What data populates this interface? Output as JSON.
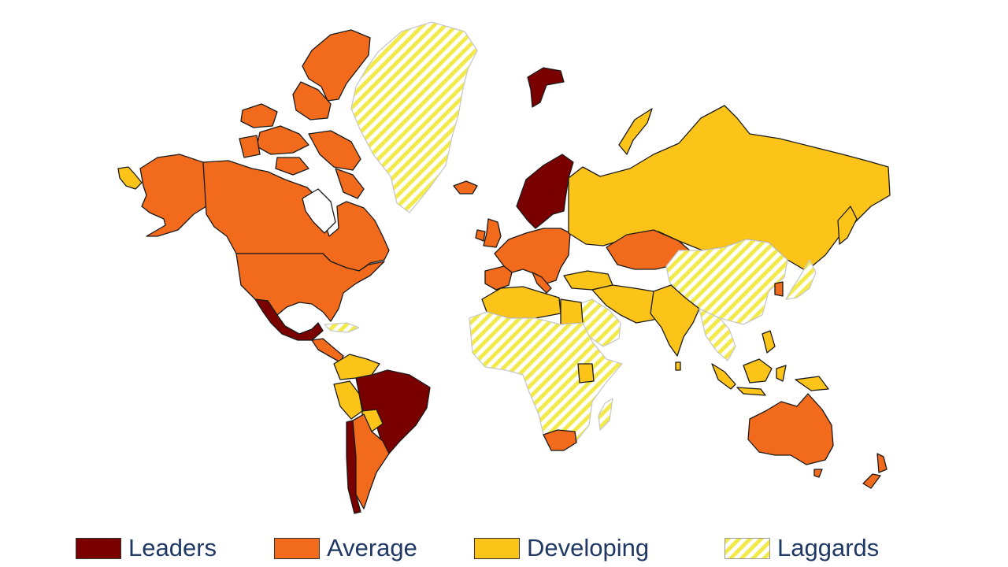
{
  "legend": {
    "leaders": {
      "label": "Leaders",
      "color": "#7a0000"
    },
    "average": {
      "label": "Average",
      "color": "#f26b1d"
    },
    "developing": {
      "label": "Developing",
      "color": "#fcc419"
    },
    "laggards": {
      "label": "Laggards",
      "color": "#f2ea4a",
      "pattern": "diagonal-hatch"
    }
  },
  "regions": {
    "leaders": [
      "Mexico",
      "Brazil",
      "Norway",
      "Sweden",
      "Finland",
      "Svalbard",
      "Chile"
    ],
    "average": [
      "Canada",
      "United States",
      "Alaska",
      "Argentina",
      "Western Europe",
      "Kazakhstan",
      "Australia",
      "New Zealand",
      "South Africa",
      "Iceland",
      "Colombia",
      "Central America"
    ],
    "developing": [
      "Russia",
      "India",
      "Indonesia",
      "Peru",
      "Venezuela",
      "Bolivia",
      "Egypt",
      "Saudi Arabia",
      "Iran",
      "Turkey",
      "Japan",
      "Algeria",
      "Kenya"
    ],
    "laggards": [
      "Greenland",
      "China",
      "Mongolia",
      "Sub-Saharan Africa",
      "Afghanistan",
      "Myanmar"
    ]
  }
}
